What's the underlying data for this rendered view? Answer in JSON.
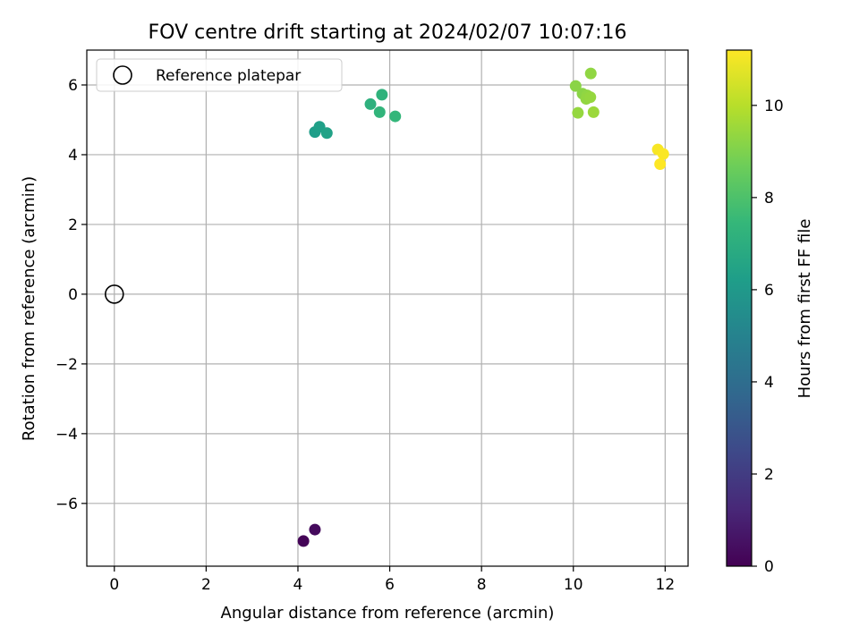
{
  "chart_data": {
    "type": "scatter",
    "title": "FOV centre drift starting at 2024/02/07 10:07:16",
    "xlabel": "Angular distance from reference (arcmin)",
    "ylabel": "Rotation from reference (arcmin)",
    "xlim": [
      -0.6,
      12.5
    ],
    "ylim": [
      -7.8,
      7.0
    ],
    "xticks": [
      0,
      2,
      4,
      6,
      8,
      10,
      12
    ],
    "xtick_labels": [
      "0",
      "2",
      "4",
      "6",
      "8",
      "10",
      "12"
    ],
    "yticks": [
      -6,
      -4,
      -2,
      0,
      2,
      4,
      6
    ],
    "ytick_labels": [
      "−6",
      "−4",
      "−2",
      "0",
      "2",
      "4",
      "6"
    ],
    "grid": true,
    "legend": {
      "placement": "upper-left",
      "entries": [
        {
          "label": "Reference platepar",
          "marker": "open-circle"
        }
      ]
    },
    "reference_point": {
      "x": 0,
      "y": 0
    },
    "colorbar": {
      "label": "Hours from first FF file",
      "colormap": "viridis",
      "range": [
        0,
        11.2
      ],
      "ticks": [
        0,
        2,
        4,
        6,
        8,
        10
      ],
      "tick_labels": [
        "0",
        "2",
        "4",
        "6",
        "8",
        "10"
      ],
      "colors": [
        "#440154",
        "#482878",
        "#3e4989",
        "#31688e",
        "#26828e",
        "#1f9e89",
        "#35b779",
        "#6ece58",
        "#b5de2b",
        "#fde725"
      ]
    },
    "points": [
      {
        "x": 4.12,
        "y": -7.08,
        "hours": 0.1
      },
      {
        "x": 4.37,
        "y": -6.75,
        "hours": 0.3
      },
      {
        "x": 4.37,
        "y": 4.65,
        "hours": 6.2
      },
      {
        "x": 4.47,
        "y": 4.8,
        "hours": 6.3
      },
      {
        "x": 4.63,
        "y": 4.62,
        "hours": 6.4
      },
      {
        "x": 5.58,
        "y": 5.45,
        "hours": 7.1
      },
      {
        "x": 5.83,
        "y": 5.72,
        "hours": 7.2
      },
      {
        "x": 5.78,
        "y": 5.22,
        "hours": 7.3
      },
      {
        "x": 6.12,
        "y": 5.1,
        "hours": 7.4
      },
      {
        "x": 10.05,
        "y": 5.97,
        "hours": 9.2
      },
      {
        "x": 10.38,
        "y": 6.33,
        "hours": 9.3
      },
      {
        "x": 10.2,
        "y": 5.75,
        "hours": 9.2
      },
      {
        "x": 10.3,
        "y": 5.7,
        "hours": 9.3
      },
      {
        "x": 10.28,
        "y": 5.6,
        "hours": 9.35
      },
      {
        "x": 10.37,
        "y": 5.65,
        "hours": 9.4
      },
      {
        "x": 10.1,
        "y": 5.2,
        "hours": 9.4
      },
      {
        "x": 10.44,
        "y": 5.22,
        "hours": 9.5
      },
      {
        "x": 11.84,
        "y": 4.15,
        "hours": 11.1
      },
      {
        "x": 11.96,
        "y": 4.02,
        "hours": 11.15
      },
      {
        "x": 11.89,
        "y": 3.73,
        "hours": 11.2
      }
    ]
  }
}
